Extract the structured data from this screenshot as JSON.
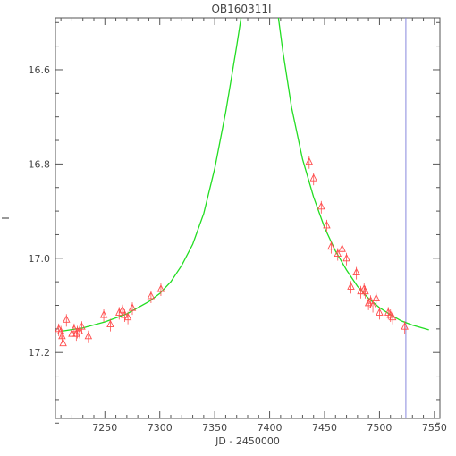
{
  "chart_data": {
    "type": "scatter",
    "title": "OB160311I",
    "xlabel": "JD - 2450000",
    "ylabel": "I",
    "xlim": [
      7205,
      7555
    ],
    "ylim": [
      17.34,
      16.49
    ],
    "y_inverted": true,
    "xticks": [
      7250,
      7300,
      7350,
      7400,
      7450,
      7500,
      7550
    ],
    "yticks": [
      16.6,
      16.8,
      17.0,
      17.2
    ],
    "ytick_labels": [
      "16.6",
      "16.8",
      "17.0",
      "17.2"
    ],
    "grid": false,
    "vline_x": 7524,
    "colors": {
      "points": "#ff4d4d",
      "model": "#22dd22",
      "vline": "#8888dd",
      "axes": "#555555"
    },
    "model": {
      "name": "",
      "x": [
        7210,
        7230,
        7250,
        7270,
        7290,
        7300,
        7310,
        7320,
        7330,
        7340,
        7350,
        7360,
        7365,
        7370,
        7374,
        7408,
        7412,
        7420,
        7430,
        7440,
        7450,
        7460,
        7470,
        7480,
        7490,
        7500,
        7510,
        7520,
        7530,
        7545
      ],
      "y": [
        17.155,
        17.148,
        17.135,
        17.118,
        17.092,
        17.075,
        17.05,
        17.015,
        16.97,
        16.905,
        16.81,
        16.69,
        16.62,
        16.55,
        16.49,
        16.49,
        16.56,
        16.68,
        16.79,
        16.87,
        16.935,
        16.985,
        17.025,
        17.06,
        17.085,
        17.105,
        17.12,
        17.133,
        17.142,
        17.152
      ]
    },
    "series": [
      {
        "name": "",
        "x": [
          7208,
          7210,
          7211,
          7212,
          7215,
          7220,
          7222,
          7224,
          7225,
          7227,
          7229,
          7235,
          7249,
          7255,
          7263,
          7266,
          7268,
          7271,
          7275,
          7292,
          7301,
          7436,
          7440,
          7447,
          7452,
          7456,
          7462,
          7466,
          7470,
          7474,
          7479,
          7483,
          7486,
          7487,
          7490,
          7492,
          7494,
          7497,
          7500,
          7508,
          7510,
          7512,
          7523
        ],
        "y": [
          17.15,
          17.155,
          17.165,
          17.18,
          17.13,
          17.16,
          17.15,
          17.16,
          17.155,
          17.155,
          17.145,
          17.165,
          17.12,
          17.14,
          17.115,
          17.11,
          17.12,
          17.125,
          17.105,
          17.08,
          17.065,
          16.795,
          16.83,
          16.89,
          16.93,
          16.975,
          16.99,
          16.98,
          17.0,
          17.06,
          17.03,
          17.07,
          17.065,
          17.07,
          17.095,
          17.09,
          17.1,
          17.085,
          17.115,
          17.115,
          17.12,
          17.125,
          17.145
        ]
      }
    ]
  }
}
